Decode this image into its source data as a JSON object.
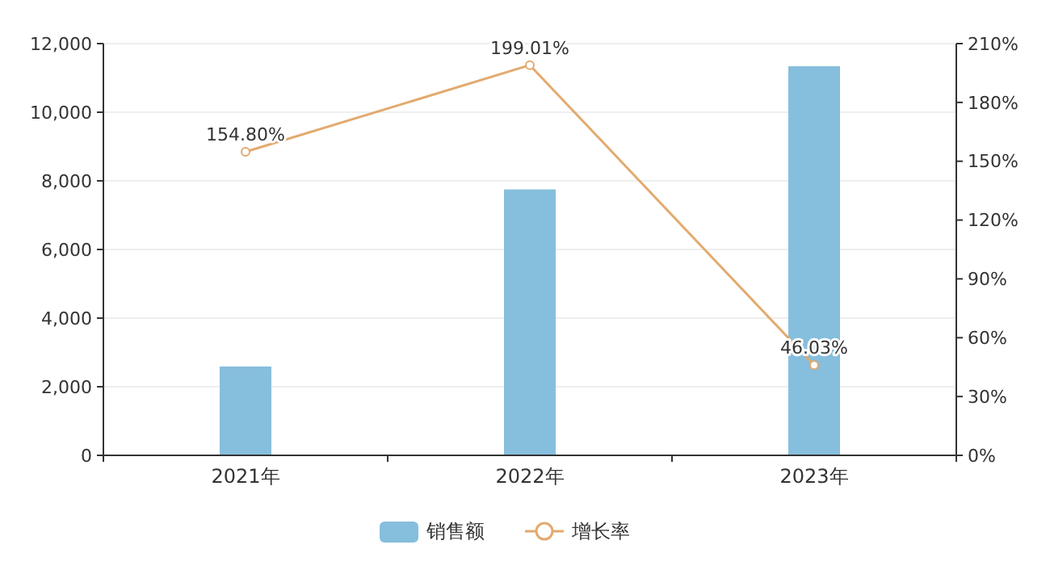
{
  "chart_data": {
    "type": "bar",
    "categories": [
      "2021年",
      "2022年",
      "2023年"
    ],
    "series": [
      {
        "name": "销售额",
        "color": "#86bedd",
        "values": [
          2590,
          7750,
          11340
        ]
      },
      {
        "name": "增长率",
        "type": "line",
        "axis": "y2",
        "color": "#e2aa6e",
        "values": [
          154.8,
          199.01,
          46.03
        ],
        "value_labels": [
          "154.80%",
          "199.01%",
          "46.03%"
        ]
      }
    ],
    "ylim": [
      0,
      12000
    ],
    "yticks": [
      {
        "value": 0,
        "label": "0"
      },
      {
        "value": 2000,
        "label": "2,000"
      },
      {
        "value": 4000,
        "label": "4,000"
      },
      {
        "value": 6000,
        "label": "6,000"
      },
      {
        "value": 8000,
        "label": "8,000"
      },
      {
        "value": 10000,
        "label": "10,000"
      },
      {
        "value": 12000,
        "label": "12,000"
      }
    ],
    "y2lim": [
      0,
      210
    ],
    "y2ticks": [
      {
        "value": 0,
        "label": "0%"
      },
      {
        "value": 30,
        "label": "30%"
      },
      {
        "value": 60,
        "label": "60%"
      },
      {
        "value": 90,
        "label": "90%"
      },
      {
        "value": 120,
        "label": "120%"
      },
      {
        "value": 150,
        "label": "150%"
      },
      {
        "value": 180,
        "label": "180%"
      },
      {
        "value": 210,
        "label": "210%"
      }
    ],
    "grid": "y",
    "legend": "bottom",
    "marker": "circle"
  }
}
